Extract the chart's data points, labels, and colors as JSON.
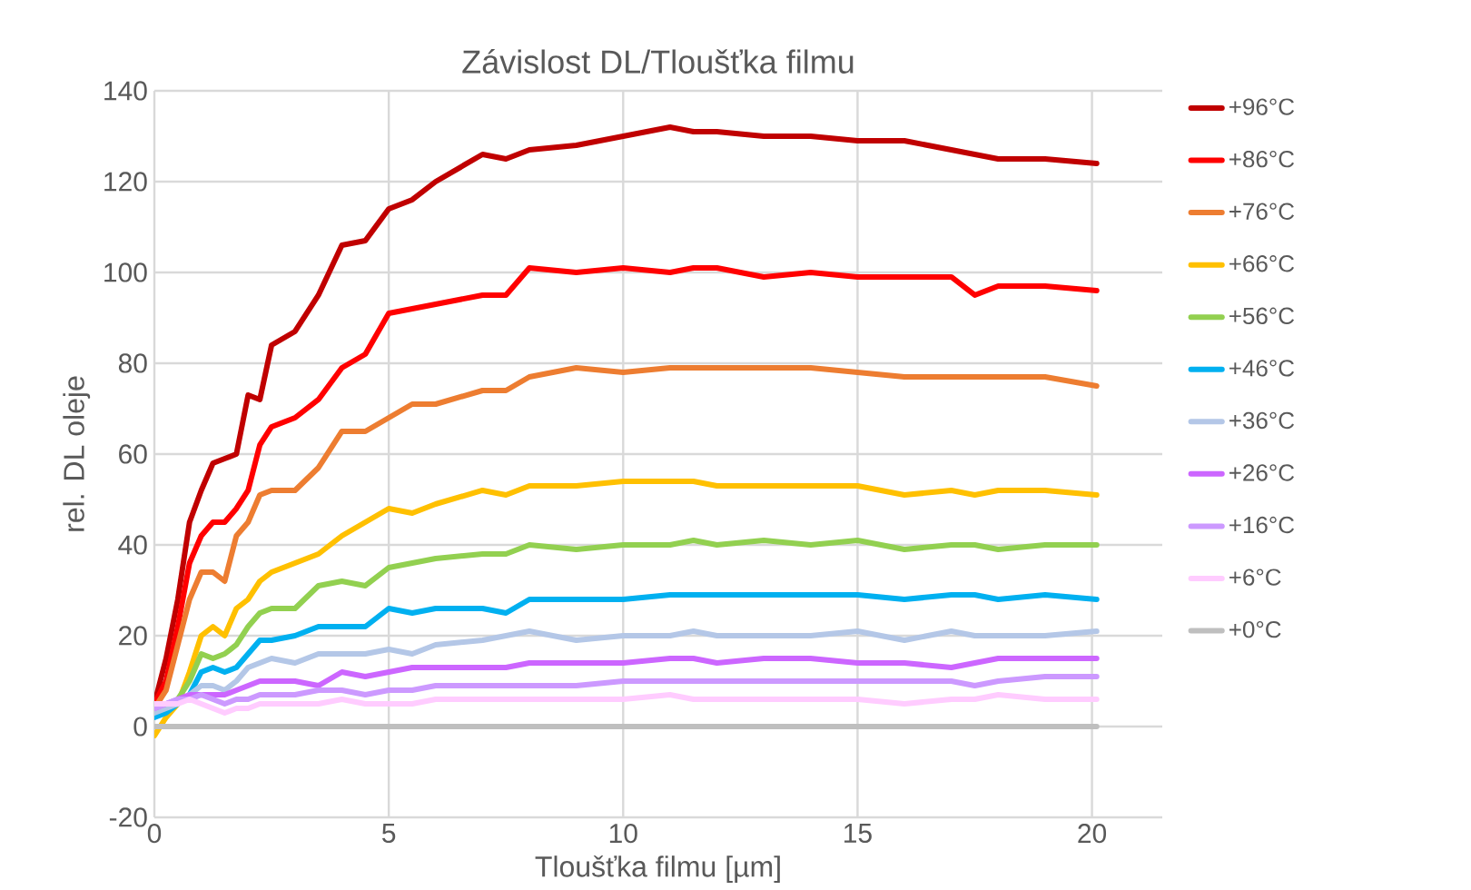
{
  "chart_data": {
    "type": "line",
    "title": "Závislost DL/Tloušťka filmu",
    "xlabel": "Tloušťka filmu [µm]",
    "ylabel": "rel. DL oleje",
    "xlim": [
      0,
      21.5
    ],
    "xticks": [
      0,
      5,
      10,
      15,
      20
    ],
    "ylim": [
      -20,
      140
    ],
    "yticks": [
      -20,
      0,
      20,
      40,
      60,
      80,
      100,
      120,
      140
    ],
    "grid": true,
    "legend": "right",
    "marker": "none",
    "line_style": "solid",
    "x": [
      0,
      0.25,
      0.5,
      0.75,
      1,
      1.25,
      1.5,
      1.75,
      2,
      2.25,
      2.5,
      3,
      3.5,
      4,
      4.5,
      5,
      5.5,
      6,
      7,
      7.5,
      8,
      9,
      10,
      11,
      11.5,
      12,
      13,
      14,
      15,
      16,
      17,
      17.5,
      18,
      19,
      20.1
    ],
    "series": [
      {
        "name": "+96°C",
        "color": "#c00000",
        "values": [
          5,
          15,
          28,
          45,
          52,
          58,
          59,
          60,
          73,
          72,
          84,
          87,
          95,
          106,
          107,
          114,
          116,
          120,
          126,
          125,
          127,
          128,
          130,
          132,
          131,
          131,
          130,
          130,
          129,
          129,
          127,
          126,
          125,
          125,
          124
        ]
      },
      {
        "name": "+86°C",
        "color": "#ff0000",
        "values": [
          5,
          10,
          22,
          36,
          42,
          45,
          45,
          48,
          52,
          62,
          66,
          68,
          72,
          79,
          82,
          91,
          92,
          93,
          95,
          95,
          101,
          100,
          101,
          100,
          101,
          101,
          99,
          100,
          99,
          99,
          99,
          95,
          97,
          97,
          96
        ]
      },
      {
        "name": "+76°C",
        "color": "#ed7d31",
        "values": [
          4,
          8,
          18,
          28,
          34,
          34,
          32,
          42,
          45,
          51,
          52,
          52,
          57,
          65,
          65,
          68,
          71,
          71,
          74,
          74,
          77,
          79,
          78,
          79,
          79,
          79,
          79,
          79,
          78,
          77,
          77,
          77,
          77,
          77,
          75
        ]
      },
      {
        "name": "+66°C",
        "color": "#ffc000",
        "values": [
          -2,
          2,
          5,
          12,
          20,
          22,
          20,
          26,
          28,
          32,
          34,
          36,
          38,
          42,
          45,
          48,
          47,
          49,
          52,
          51,
          53,
          53,
          54,
          54,
          54,
          53,
          53,
          53,
          53,
          51,
          52,
          51,
          52,
          52,
          51
        ]
      },
      {
        "name": "+56°C",
        "color": "#92d050",
        "values": [
          null,
          4,
          6,
          10,
          16,
          15,
          16,
          18,
          22,
          25,
          26,
          26,
          31,
          32,
          31,
          35,
          36,
          37,
          38,
          38,
          40,
          39,
          40,
          40,
          41,
          40,
          41,
          40,
          41,
          39,
          40,
          40,
          39,
          40,
          40
        ]
      },
      {
        "name": "+46°C",
        "color": "#00b0f0",
        "values": [
          2,
          3,
          5,
          7,
          12,
          13,
          12,
          13,
          16,
          19,
          19,
          20,
          22,
          22,
          22,
          26,
          25,
          26,
          26,
          25,
          28,
          28,
          28,
          29,
          29,
          29,
          29,
          29,
          29,
          28,
          29,
          29,
          28,
          29,
          28
        ]
      },
      {
        "name": "+36°C",
        "color": "#b4c7e7",
        "values": [
          3,
          4,
          5,
          7,
          9,
          9,
          8,
          10,
          13,
          14,
          15,
          14,
          16,
          16,
          16,
          17,
          16,
          18,
          19,
          20,
          21,
          19,
          20,
          20,
          21,
          20,
          20,
          20,
          21,
          19,
          21,
          20,
          20,
          20,
          21
        ]
      },
      {
        "name": "+26°C",
        "color": "#cc66ff",
        "values": [
          4,
          5,
          6,
          7,
          7,
          7,
          7,
          8,
          9,
          10,
          10,
          10,
          9,
          12,
          11,
          12,
          13,
          13,
          13,
          13,
          14,
          14,
          14,
          15,
          15,
          14,
          15,
          15,
          14,
          14,
          13,
          14,
          15,
          15,
          15
        ]
      },
      {
        "name": "+16°C",
        "color": "#cc99ff",
        "values": [
          4,
          5,
          6,
          6,
          7,
          6,
          5,
          6,
          6,
          7,
          7,
          7,
          8,
          8,
          7,
          8,
          8,
          9,
          9,
          9,
          9,
          9,
          10,
          10,
          10,
          10,
          10,
          10,
          10,
          10,
          10,
          9,
          10,
          11,
          11
        ]
      },
      {
        "name": "+6°C",
        "color": "#ffccff",
        "values": [
          5,
          5,
          5,
          6,
          5,
          4,
          3,
          4,
          4,
          5,
          5,
          5,
          5,
          6,
          5,
          5,
          5,
          6,
          6,
          6,
          6,
          6,
          6,
          7,
          6,
          6,
          6,
          6,
          6,
          5,
          6,
          6,
          7,
          6,
          6
        ]
      },
      {
        "name": "+0°C",
        "color": "#bfbfbf",
        "values": [
          0,
          0,
          0,
          0,
          0,
          0,
          0,
          0,
          0,
          0,
          0,
          0,
          0,
          0,
          0,
          0,
          0,
          0,
          0,
          0,
          0,
          0,
          0,
          0,
          0,
          0,
          0,
          0,
          0,
          0,
          0,
          0,
          0,
          0,
          0
        ]
      }
    ]
  }
}
